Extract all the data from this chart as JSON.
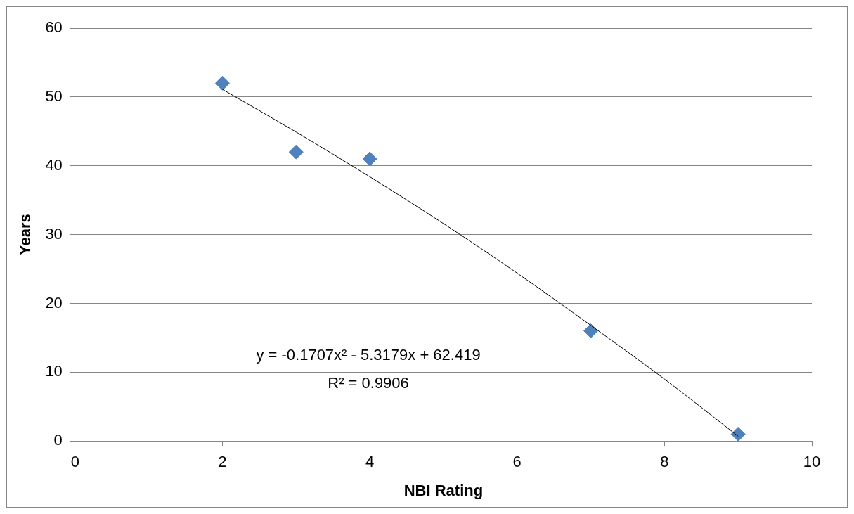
{
  "chart_data": {
    "type": "scatter",
    "xlabel": "NBI Rating",
    "ylabel": "Years",
    "xlim": [
      0,
      10
    ],
    "xticks": [
      0,
      2,
      4,
      6,
      8,
      10
    ],
    "ylim": [
      0,
      60
    ],
    "yticks": [
      0,
      10,
      20,
      30,
      40,
      50,
      60
    ],
    "grid": "y",
    "marker": "diamond",
    "series": [
      {
        "color": "#4f81bd",
        "x": [
          2,
          3,
          4,
          7,
          9
        ],
        "values": [
          52,
          42,
          41,
          16,
          1
        ]
      },
      {
        "type": "line",
        "color": "#000000",
        "marker": "none",
        "x": [
          2,
          3,
          4,
          5,
          6,
          7,
          8,
          9
        ],
        "values": [
          51.1,
          44.9,
          38.4,
          31.6,
          24.4,
          16.8,
          9,
          0.7
        ]
      }
    ],
    "annotations": [
      "y = -0.1707x² - 5.3179x + 62.419",
      "R² = 0.9906"
    ]
  }
}
